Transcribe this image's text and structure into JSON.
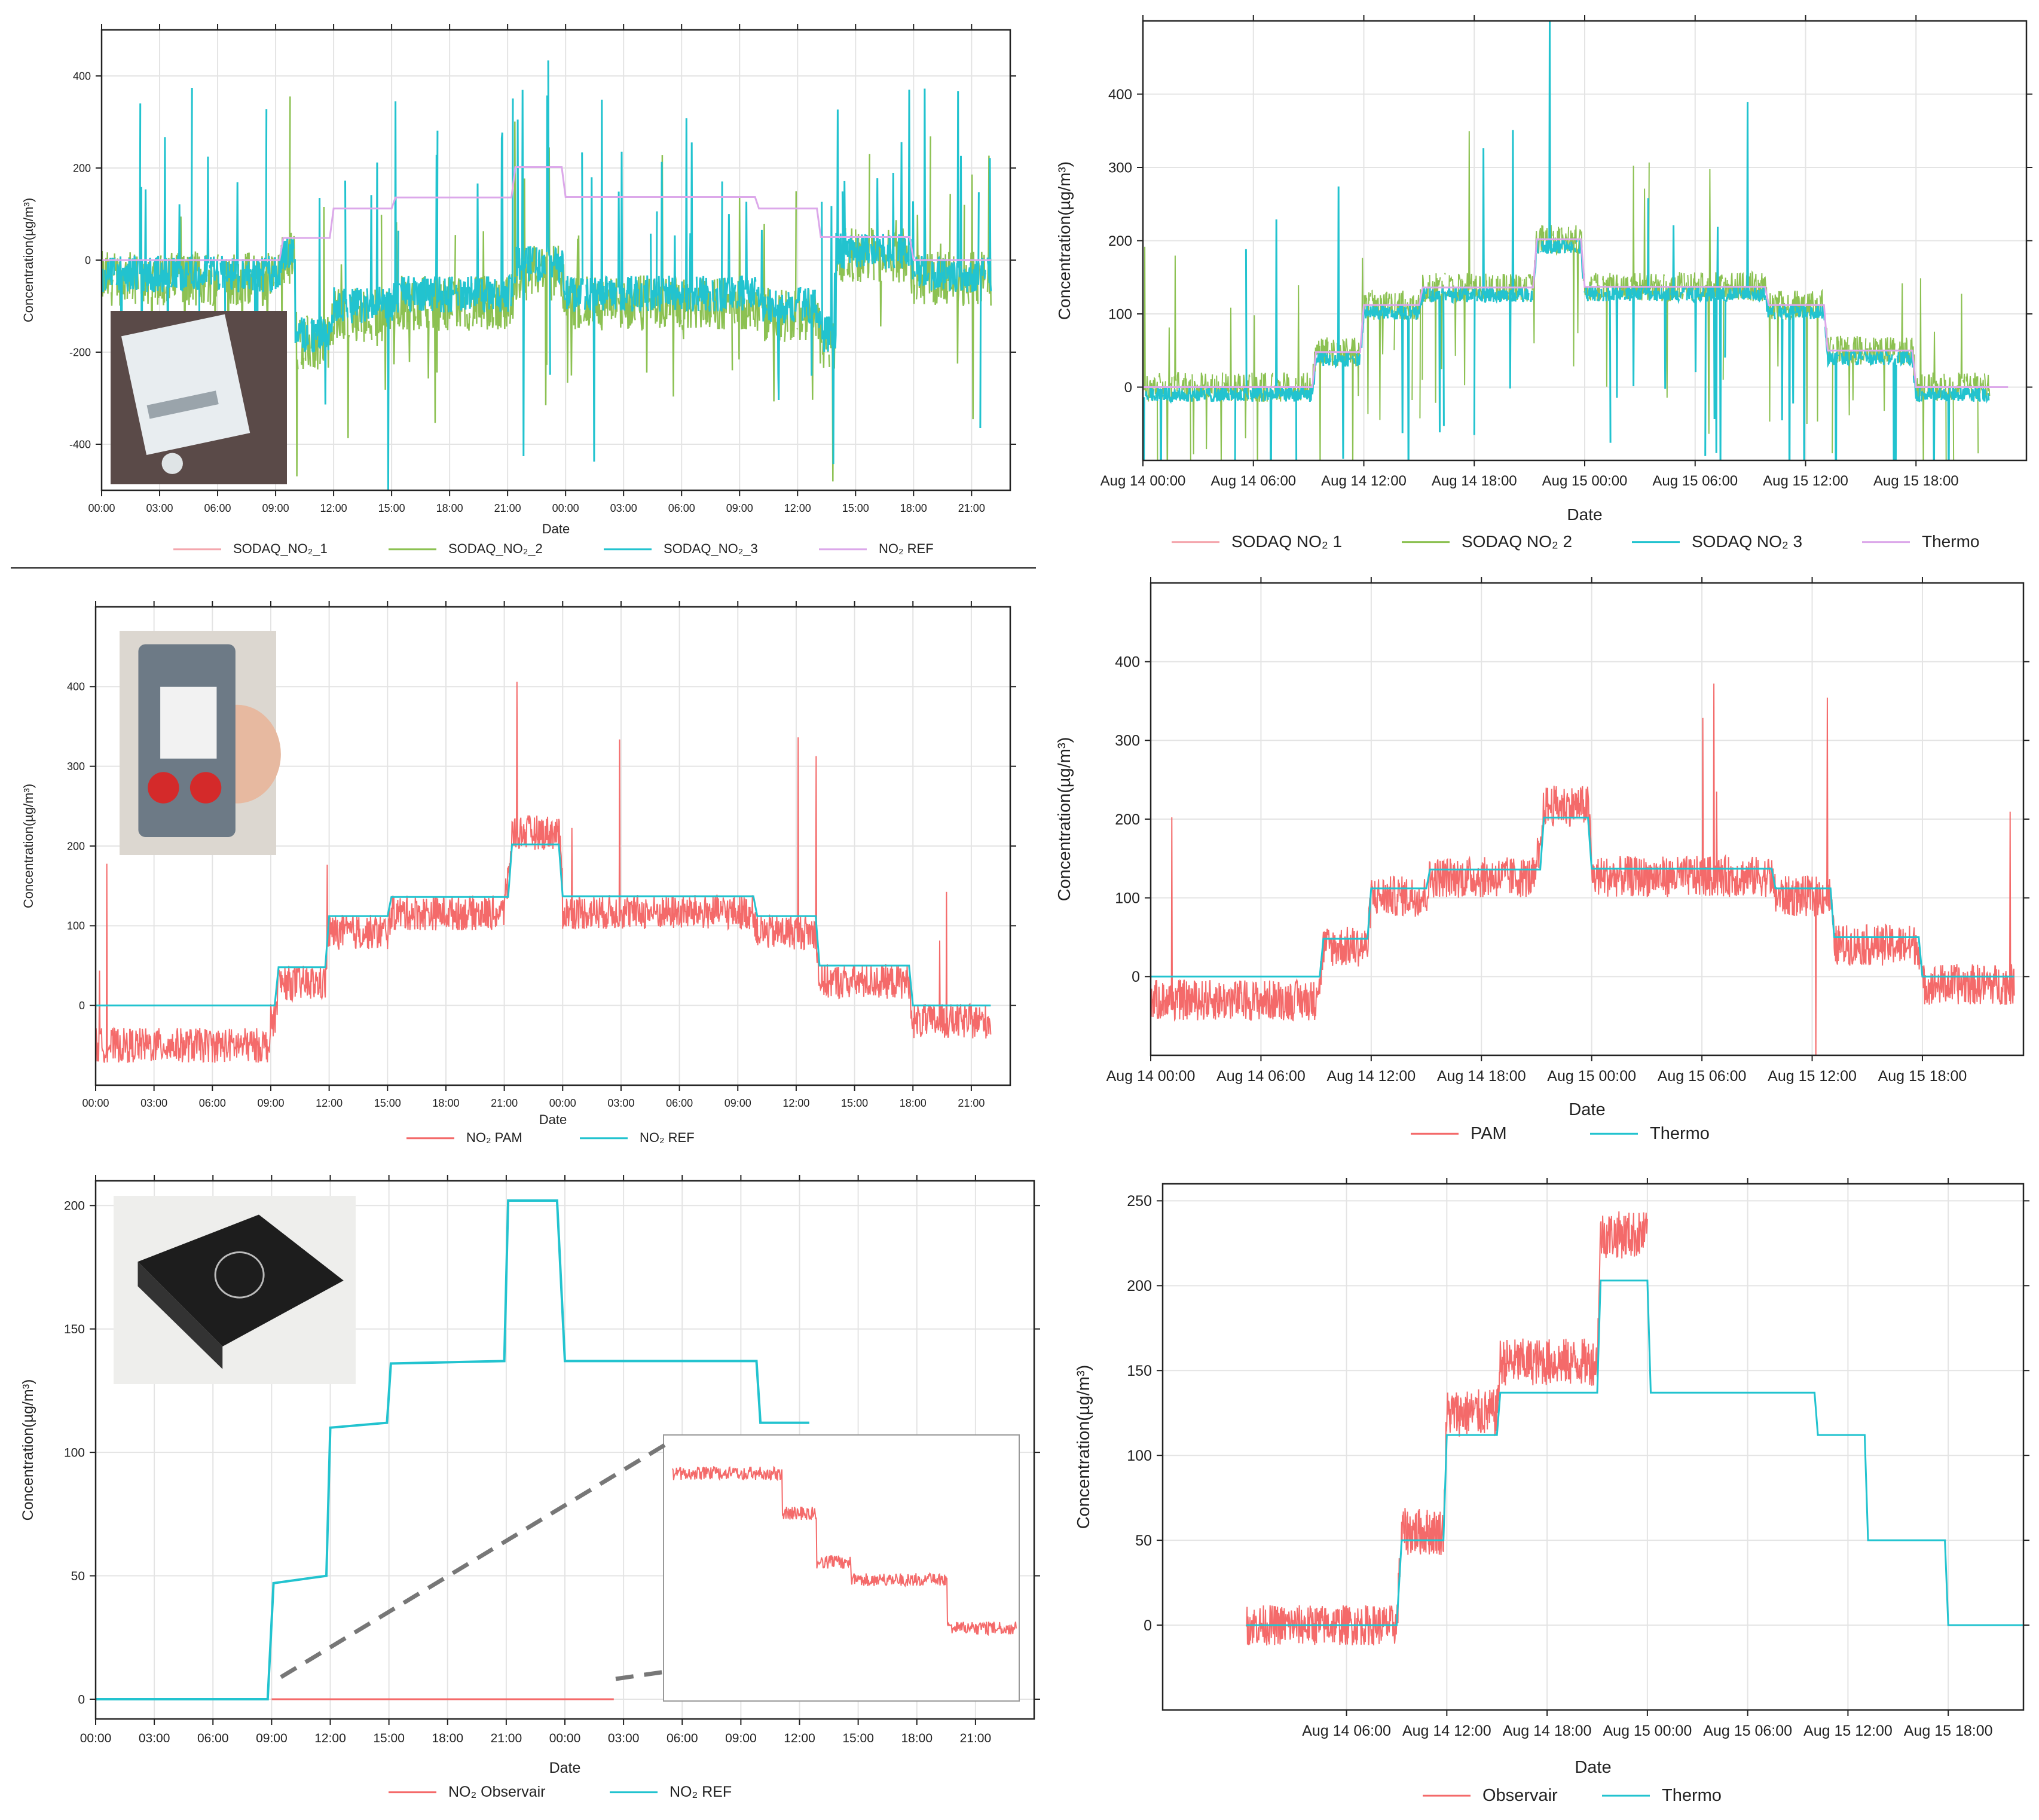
{
  "colors": {
    "pink": "#f4a7ae",
    "red": "#f46a6a",
    "green": "#8cc152",
    "cyan": "#22c3cf",
    "violet": "#dca8ea",
    "axis": "#222222",
    "grid": "#e4e4e4"
  },
  "icons": {
    "sodaq": "sensor-photo-sodaq-icon",
    "pam": "sensor-photo-pam-icon",
    "observair": "sensor-photo-observair-icon"
  },
  "charts": [
    {
      "id": "sodaq-left",
      "type": "line",
      "ylabel": "Concentration(µg/m³)",
      "xlabel": "Date",
      "ylim": [
        -500,
        500
      ],
      "yticks": [
        -400,
        -200,
        0,
        200,
        400
      ],
      "xticks": [
        "00:00",
        "03:00",
        "06:00",
        "09:00",
        "12:00",
        "15:00",
        "18:00",
        "21:00",
        "00:00",
        "03:00",
        "06:00",
        "09:00",
        "12:00",
        "15:00",
        "18:00",
        "21:00"
      ],
      "legend": [
        {
          "label": "SODAQ_NO₂_1",
          "color": "#f4a7ae"
        },
        {
          "label": "SODAQ_NO₂_2",
          "color": "#8cc152"
        },
        {
          "label": "SODAQ_NO₂_3",
          "color": "#22c3cf"
        },
        {
          "label": "NO₂ REF",
          "color": "#dca8ea"
        }
      ]
    },
    {
      "id": "sodaq-right",
      "type": "line",
      "ylabel": "Concentration(µg/m³)",
      "xlabel": "Date",
      "ylim": [
        -100,
        500
      ],
      "yticks": [
        0,
        100,
        200,
        300,
        400
      ],
      "xticks": [
        "Aug 14 00:00",
        "Aug 14 06:00",
        "Aug 14 12:00",
        "Aug 14 18:00",
        "Aug 15 00:00",
        "Aug 15 06:00",
        "Aug 15 12:00",
        "Aug 15 18:00"
      ],
      "legend": [
        {
          "label": "SODAQ NO₂ 1",
          "color": "#f4a7ae"
        },
        {
          "label": "SODAQ NO₂ 2",
          "color": "#8cc152"
        },
        {
          "label": "SODAQ NO₂ 3",
          "color": "#22c3cf"
        },
        {
          "label": "Thermo",
          "color": "#dca8ea"
        }
      ]
    },
    {
      "id": "pam-left",
      "type": "line",
      "ylabel": "Concentration(µg/m³)",
      "xlabel": "Date",
      "ylim": [
        -100,
        500
      ],
      "yticks": [
        0,
        100,
        200,
        300,
        400
      ],
      "xticks": [
        "00:00",
        "03:00",
        "06:00",
        "09:00",
        "12:00",
        "15:00",
        "18:00",
        "21:00",
        "00:00",
        "03:00",
        "06:00",
        "09:00",
        "12:00",
        "15:00",
        "18:00",
        "21:00"
      ],
      "legend": [
        {
          "label": "NO₂ PAM",
          "color": "#f46a6a"
        },
        {
          "label": "NO₂ REF",
          "color": "#22c3cf"
        }
      ]
    },
    {
      "id": "pam-right",
      "type": "line",
      "ylabel": "Concentration(µg/m³)",
      "xlabel": "Date",
      "ylim": [
        -100,
        500
      ],
      "yticks": [
        0,
        100,
        200,
        300,
        400
      ],
      "xticks": [
        "Aug 14 00:00",
        "Aug 14 06:00",
        "Aug 14 12:00",
        "Aug 14 18:00",
        "Aug 15 00:00",
        "Aug 15 06:00",
        "Aug 15 12:00",
        "Aug 15 18:00"
      ],
      "legend": [
        {
          "label": "PAM",
          "color": "#f46a6a"
        },
        {
          "label": "Thermo",
          "color": "#22c3cf"
        }
      ]
    },
    {
      "id": "observair-left",
      "type": "line",
      "ylabel": "Concentration(µg/m³)",
      "xlabel": "Date",
      "ylim": [
        -8,
        210
      ],
      "yticks": [
        0,
        50,
        100,
        150,
        200
      ],
      "xticks": [
        "00:00",
        "03:00",
        "06:00",
        "09:00",
        "12:00",
        "15:00",
        "18:00",
        "21:00",
        "00:00",
        "03:00",
        "06:00",
        "09:00",
        "12:00",
        "15:00",
        "18:00",
        "21:00"
      ],
      "legend": [
        {
          "label": "NO₂ Observair",
          "color": "#f46a6a"
        },
        {
          "label": "NO₂ REF",
          "color": "#22c3cf"
        }
      ]
    },
    {
      "id": "observair-right",
      "type": "line",
      "ylabel": "Concentration(µg/m³)",
      "xlabel": "Date",
      "ylim": [
        -50,
        260
      ],
      "yticks": [
        0,
        50,
        100,
        150,
        200,
        250
      ],
      "xticks": [
        "Aug 14 06:00",
        "Aug 14 12:00",
        "Aug 14 18:00",
        "Aug 15 00:00",
        "Aug 15 06:00",
        "Aug 15 12:00",
        "Aug 15 18:00"
      ],
      "legend": [
        {
          "label": "Observair",
          "color": "#f46a6a"
        },
        {
          "label": "Thermo",
          "color": "#22c3cf"
        }
      ]
    }
  ],
  "chart_data": [
    {
      "type": "line",
      "x_unit": "hours",
      "series": [
        {
          "name": "NO₂ REF",
          "points": [
            [
              0,
              0
            ],
            [
              9.2,
              0
            ],
            [
              9.4,
              48
            ],
            [
              11.8,
              48
            ],
            [
              12,
              112
            ],
            [
              15,
              112
            ],
            [
              15.2,
              136
            ],
            [
              21.2,
              136
            ],
            [
              21.4,
              202
            ],
            [
              23.8,
              202
            ],
            [
              24,
              137
            ],
            [
              33.8,
              137
            ],
            [
              34,
              112
            ],
            [
              37,
              112
            ],
            [
              37.2,
              50
            ],
            [
              41.8,
              50
            ],
            [
              42,
              0
            ],
            [
              46,
              0
            ]
          ]
        }
      ]
    },
    {
      "type": "line",
      "x_unit": "hours",
      "series": [
        {
          "name": "Thermo",
          "points": [
            [
              0,
              0
            ],
            [
              9.2,
              0
            ],
            [
              9.4,
              48
            ],
            [
              11.8,
              48
            ],
            [
              12,
              112
            ],
            [
              15,
              112
            ],
            [
              15.2,
              136
            ],
            [
              21.2,
              136
            ],
            [
              21.4,
              202
            ],
            [
              23.8,
              202
            ],
            [
              24,
              137
            ],
            [
              33.8,
              137
            ],
            [
              34,
              112
            ],
            [
              37,
              112
            ],
            [
              37.2,
              50
            ],
            [
              41.8,
              50
            ],
            [
              42,
              0
            ],
            [
              47,
              0
            ]
          ]
        }
      ]
    },
    {
      "type": "line",
      "x_unit": "hours",
      "series": [
        {
          "name": "NO₂ REF",
          "points": [
            [
              0,
              0
            ],
            [
              9.2,
              0
            ],
            [
              9.4,
              48
            ],
            [
              11.8,
              48
            ],
            [
              12,
              112
            ],
            [
              15,
              112
            ],
            [
              15.2,
              136
            ],
            [
              21.2,
              136
            ],
            [
              21.4,
              202
            ],
            [
              23.8,
              202
            ],
            [
              24,
              137
            ],
            [
              33.8,
              137
            ],
            [
              34,
              112
            ],
            [
              37,
              112
            ],
            [
              37.2,
              50
            ],
            [
              41.8,
              50
            ],
            [
              42,
              0
            ],
            [
              46,
              0
            ]
          ]
        }
      ]
    },
    {
      "type": "line",
      "x_unit": "hours",
      "series": [
        {
          "name": "Thermo",
          "points": [
            [
              0,
              0
            ],
            [
              9.2,
              0
            ],
            [
              9.4,
              48
            ],
            [
              11.8,
              48
            ],
            [
              12,
              112
            ],
            [
              15,
              112
            ],
            [
              15.2,
              136
            ],
            [
              21.2,
              136
            ],
            [
              21.4,
              202
            ],
            [
              23.8,
              202
            ],
            [
              24,
              137
            ],
            [
              33.8,
              137
            ],
            [
              34,
              112
            ],
            [
              37,
              112
            ],
            [
              37.2,
              50
            ],
            [
              41.8,
              50
            ],
            [
              42,
              0
            ],
            [
              47,
              0
            ]
          ]
        }
      ]
    },
    {
      "type": "line",
      "x_unit": "hours",
      "series": [
        {
          "name": "NO₂ REF",
          "points": [
            [
              0,
              0
            ],
            [
              8.8,
              0
            ],
            [
              9.1,
              47
            ],
            [
              11.8,
              50
            ],
            [
              12,
              110
            ],
            [
              14.9,
              112
            ],
            [
              15.1,
              136
            ],
            [
              20.9,
              137
            ],
            [
              21.1,
              202
            ],
            [
              23.6,
              202
            ],
            [
              24,
              137
            ],
            [
              33.8,
              137
            ],
            [
              34,
              112
            ],
            [
              36.5,
              112
            ]
          ]
        },
        {
          "name": "NO₂ Observair",
          "points": [
            [
              9,
              0
            ],
            [
              26.5,
              0
            ]
          ]
        }
      ]
    },
    {
      "type": "line",
      "x_unit": "hours",
      "series": [
        {
          "name": "Thermo",
          "points": [
            [
              0,
              0
            ],
            [
              9,
              0
            ],
            [
              9.3,
              50
            ],
            [
              11.8,
              50
            ],
            [
              12,
              112
            ],
            [
              15,
              112
            ],
            [
              15.2,
              137
            ],
            [
              21,
              137
            ],
            [
              21.2,
              203
            ],
            [
              24,
              203
            ],
            [
              24.2,
              137
            ],
            [
              34,
              137
            ],
            [
              34.2,
              112
            ],
            [
              37,
              112
            ],
            [
              37.2,
              50
            ],
            [
              41.8,
              50
            ],
            [
              42,
              0
            ],
            [
              47,
              0
            ]
          ]
        },
        {
          "name": "Observair",
          "points": [
            [
              0,
              0
            ],
            [
              9,
              0
            ],
            [
              9.3,
              55
            ],
            [
              11.8,
              55
            ],
            [
              12,
              125
            ],
            [
              15,
              125
            ],
            [
              15.2,
              155
            ],
            [
              21,
              155
            ],
            [
              21.2,
              230
            ],
            [
              24,
              230
            ]
          ]
        }
      ]
    }
  ]
}
